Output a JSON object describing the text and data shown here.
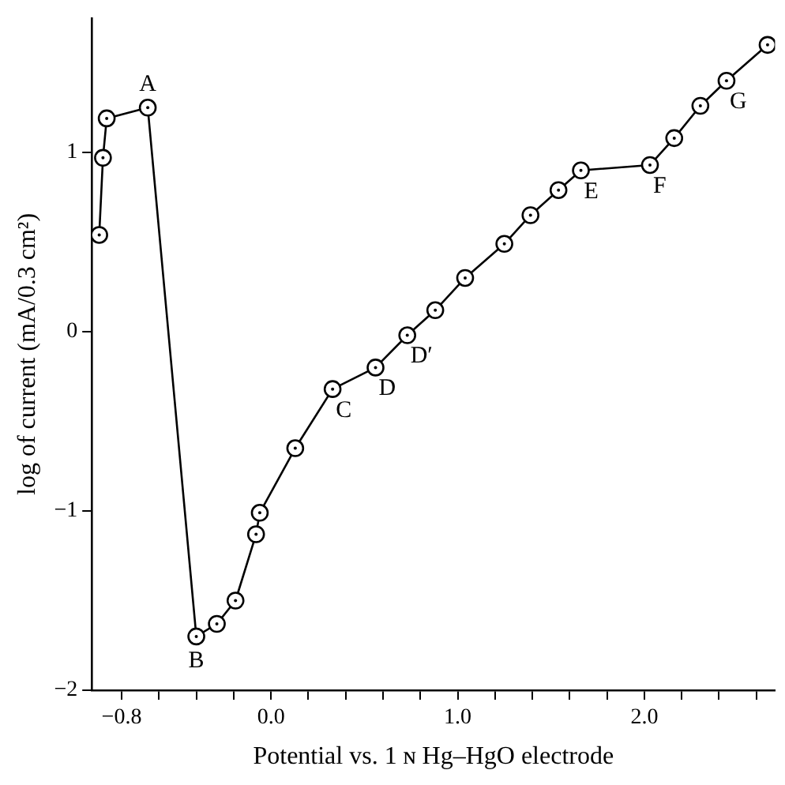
{
  "chart_data": {
    "type": "line",
    "xlabel": "Potential vs. 1 ɴ Hg–HgO electrode",
    "ylabel": "log of current (mA/0.3 cm²)",
    "x": [
      -0.92,
      -0.9,
      -0.88,
      -0.66,
      -0.4,
      -0.29,
      -0.19,
      -0.08,
      -0.06,
      0.13,
      0.33,
      0.56,
      0.73,
      0.88,
      1.04,
      1.25,
      1.39,
      1.54,
      1.66,
      2.03,
      2.16,
      2.3,
      2.44,
      2.66
    ],
    "series": [
      {
        "color": "#000000",
        "values": [
          0.54,
          0.97,
          1.19,
          1.25,
          -1.7,
          -1.63,
          -1.5,
          -1.13,
          -1.01,
          -0.65,
          -0.32,
          -0.2,
          -0.02,
          0.12,
          0.3,
          0.49,
          0.65,
          0.79,
          0.9,
          0.93,
          1.08,
          1.26,
          1.4,
          1.6
        ]
      }
    ],
    "xlim": [
      -0.96,
      2.7
    ],
    "ylim": [
      -2,
      1.75
    ],
    "xticks": [
      {
        "value": -0.8,
        "label": "−0.8"
      },
      {
        "value": -0.6,
        "label": null
      },
      {
        "value": -0.4,
        "label": null
      },
      {
        "value": -0.2,
        "label": null
      },
      {
        "value": 0,
        "label": "0.0"
      },
      {
        "value": 0.2,
        "label": null
      },
      {
        "value": 0.4,
        "label": null
      },
      {
        "value": 0.6,
        "label": null
      },
      {
        "value": 0.8,
        "label": null
      },
      {
        "value": 1,
        "label": "1.0"
      },
      {
        "value": 1.2,
        "label": null
      },
      {
        "value": 1.4,
        "label": null
      },
      {
        "value": 1.6,
        "label": null
      },
      {
        "value": 1.8,
        "label": null
      },
      {
        "value": 2,
        "label": "2.0"
      },
      {
        "value": 2.2,
        "label": null
      },
      {
        "value": 2.4,
        "label": null
      },
      {
        "value": 2.6,
        "label": null
      }
    ],
    "yticks": [
      -2,
      -1,
      0,
      1
    ],
    "annotations": [
      {
        "text": "A",
        "x": -0.66,
        "y": 1.25
      },
      {
        "text": "B",
        "x": -0.4,
        "y": -1.7
      },
      {
        "text": "C",
        "x": 0.33,
        "y": -0.32
      },
      {
        "text": "D",
        "x": 0.56,
        "y": -0.2
      },
      {
        "text": "D′",
        "x": 0.73,
        "y": -0.02
      },
      {
        "text": "E",
        "x": 1.66,
        "y": 0.9
      },
      {
        "text": "F",
        "x": 2.03,
        "y": 0.93
      },
      {
        "text": "G",
        "x": 2.44,
        "y": 1.4
      }
    ],
    "grid": false,
    "legend": false,
    "marker": "circle",
    "line_style": "solid"
  }
}
